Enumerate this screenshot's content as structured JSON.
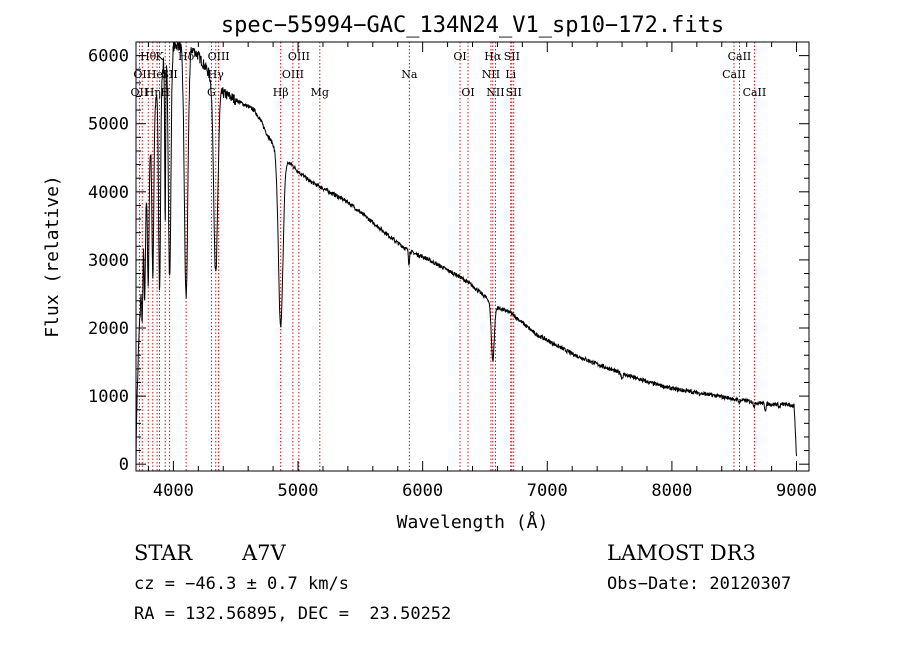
{
  "chart_data": {
    "type": "line",
    "title": "spec−55994−GAC_134N24_V1_sp10−172.fits",
    "xlabel": "Wavelength (Å)",
    "ylabel": "Flux (relative)",
    "xlim": [
      3700,
      9100
    ],
    "ylim": [
      -100,
      6200
    ],
    "x_ticks": [
      4000,
      5000,
      6000,
      7000,
      8000,
      9000
    ],
    "x_tick_labels": [
      "4000",
      "5000",
      "6000",
      "7000",
      "8000",
      "9000"
    ],
    "y_ticks": [
      0,
      1000,
      2000,
      3000,
      4000,
      5000,
      6000
    ],
    "y_tick_labels": [
      "0",
      "1000",
      "2000",
      "3000",
      "4000",
      "5000",
      "6000"
    ],
    "grid": false,
    "continuum": [
      [
        3700,
        0
      ],
      [
        3705,
        700
      ],
      [
        3720,
        1700
      ],
      [
        3740,
        2500
      ],
      [
        3760,
        3300
      ],
      [
        3790,
        4200
      ],
      [
        3820,
        4700
      ],
      [
        3850,
        5200
      ],
      [
        3880,
        5600
      ],
      [
        3920,
        5900
      ],
      [
        3960,
        6050
      ],
      [
        4000,
        6150
      ],
      [
        4050,
        6150
      ],
      [
        4100,
        6150
      ],
      [
        4150,
        6100
      ],
      [
        4200,
        6000
      ],
      [
        4250,
        5850
      ],
      [
        4300,
        5700
      ],
      [
        4350,
        5550
      ],
      [
        4400,
        5450
      ],
      [
        4450,
        5400
      ],
      [
        4500,
        5350
      ],
      [
        4550,
        5300
      ],
      [
        4600,
        5250
      ],
      [
        4650,
        5200
      ],
      [
        4700,
        5050
      ],
      [
        4750,
        4850
      ],
      [
        4800,
        4700
      ],
      [
        4850,
        4500
      ],
      [
        4900,
        4450
      ],
      [
        4950,
        4400
      ],
      [
        5000,
        4300
      ],
      [
        5100,
        4150
      ],
      [
        5200,
        4050
      ],
      [
        5300,
        3950
      ],
      [
        5400,
        3850
      ],
      [
        5500,
        3700
      ],
      [
        5600,
        3550
      ],
      [
        5700,
        3400
      ],
      [
        5800,
        3250
      ],
      [
        5900,
        3120
      ],
      [
        6000,
        3050
      ],
      [
        6100,
        2950
      ],
      [
        6200,
        2850
      ],
      [
        6300,
        2750
      ],
      [
        6400,
        2620
      ],
      [
        6500,
        2460
      ],
      [
        6600,
        2300
      ],
      [
        6700,
        2230
      ],
      [
        6800,
        2080
      ],
      [
        6900,
        1920
      ],
      [
        7000,
        1820
      ],
      [
        7200,
        1620
      ],
      [
        7400,
        1470
      ],
      [
        7600,
        1330
      ],
      [
        7800,
        1210
      ],
      [
        8000,
        1110
      ],
      [
        8200,
        1050
      ],
      [
        8400,
        990
      ],
      [
        8500,
        960
      ],
      [
        8600,
        930
      ],
      [
        8700,
        900
      ],
      [
        8800,
        880
      ],
      [
        8900,
        880
      ],
      [
        8980,
        860
      ],
      [
        9000,
        100
      ]
    ],
    "absorption_lines": [
      [
        3750,
        0.3,
        4
      ],
      [
        3770,
        0.35,
        5
      ],
      [
        3798,
        0.4,
        6
      ],
      [
        3835,
        0.45,
        7
      ],
      [
        3889,
        0.55,
        8
      ],
      [
        3934,
        0.4,
        4
      ],
      [
        3970,
        0.55,
        10
      ],
      [
        4102,
        0.6,
        14
      ],
      [
        4340,
        0.5,
        16
      ],
      [
        4861,
        0.55,
        18
      ],
      [
        5890,
        0.06,
        4
      ],
      [
        6563,
        0.35,
        12
      ],
      [
        7600,
        0.05,
        6
      ],
      [
        8498,
        0.04,
        5
      ],
      [
        8542,
        0.06,
        5
      ],
      [
        8662,
        0.07,
        6
      ],
      [
        8750,
        0.1,
        6
      ],
      [
        8863,
        0.05,
        6
      ]
    ],
    "line_markers": [
      {
        "wavelength": 3727,
        "label": "OII",
        "row": 2
      },
      {
        "wavelength": 3750,
        "label": "OII",
        "row": 1
      },
      {
        "wavelength": 3798,
        "label": "Hθ",
        "row": 0
      },
      {
        "wavelength": 3835,
        "label": "Hη",
        "row": 2
      },
      {
        "wavelength": 3869,
        "label": "HeI",
        "row": 1
      },
      {
        "wavelength": 3889,
        "label": "K",
        "row": 0
      },
      {
        "wavelength": 3934,
        "label": "H",
        "row": 2
      },
      {
        "wavelength": 3970,
        "label": "SII",
        "row": 1
      },
      {
        "wavelength": 4102,
        "label": "Hδ",
        "row": 0
      },
      {
        "wavelength": 4305,
        "label": "G",
        "row": 2
      },
      {
        "wavelength": 4340,
        "label": "Hγ",
        "row": 1
      },
      {
        "wavelength": 4363,
        "label": "OIII",
        "row": 0
      },
      {
        "wavelength": 4861,
        "label": "Hβ",
        "row": 2
      },
      {
        "wavelength": 4959,
        "label": "OIII",
        "row": 1
      },
      {
        "wavelength": 5007,
        "label": "OIII",
        "row": 0
      },
      {
        "wavelength": 5175,
        "label": "Mg",
        "row": 2
      },
      {
        "wavelength": 5893,
        "label": "Na",
        "row": 1
      },
      {
        "wavelength": 6300,
        "label": "OI",
        "row": 0
      },
      {
        "wavelength": 6364,
        "label": "OI",
        "row": 2
      },
      {
        "wavelength": 6548,
        "label": "NII",
        "row": 1
      },
      {
        "wavelength": 6563,
        "label": "Hα",
        "row": 0
      },
      {
        "wavelength": 6584,
        "label": "NII",
        "row": 2
      },
      {
        "wavelength": 6707,
        "label": "Li",
        "row": 1
      },
      {
        "wavelength": 6716,
        "label": "SII",
        "row": 0
      },
      {
        "wavelength": 6731,
        "label": "SII",
        "row": 2
      },
      {
        "wavelength": 8498,
        "label": "CaII",
        "row": 1
      },
      {
        "wavelength": 8542,
        "label": "CaII",
        "row": 0
      },
      {
        "wavelength": 8662,
        "label": "CaII",
        "row": 2
      }
    ]
  },
  "info": {
    "object_type": "STAR",
    "subclass": "A7V",
    "survey": "LAMOST DR3",
    "cz": "cz = −46.3 ± 0.7 km/s",
    "obs_date": "Obs−Date: 20120307",
    "coords": "RA = 132.56895, DEC =  23.50252"
  }
}
